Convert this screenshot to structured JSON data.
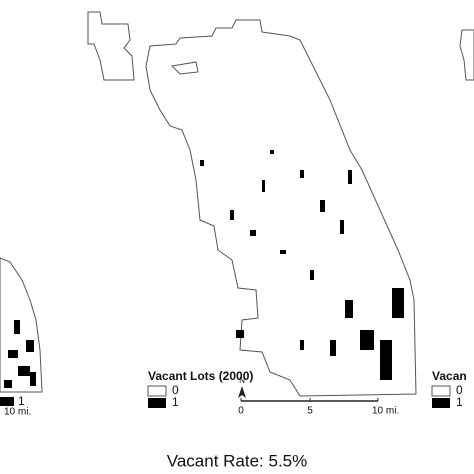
{
  "left_map": {
    "legend": [
      "1"
    ],
    "scale": [
      "10 mi."
    ]
  },
  "center_map": {
    "legend_title": "Vacant Lots (2000)",
    "legend": [
      "0",
      "1"
    ],
    "north": "N",
    "scale": [
      "0",
      "5",
      "10 mi."
    ]
  },
  "right_map": {
    "legend_title": "Vacan",
    "legend": [
      "0",
      "1"
    ]
  },
  "caption": "Vacant Rate: 5.5%"
}
